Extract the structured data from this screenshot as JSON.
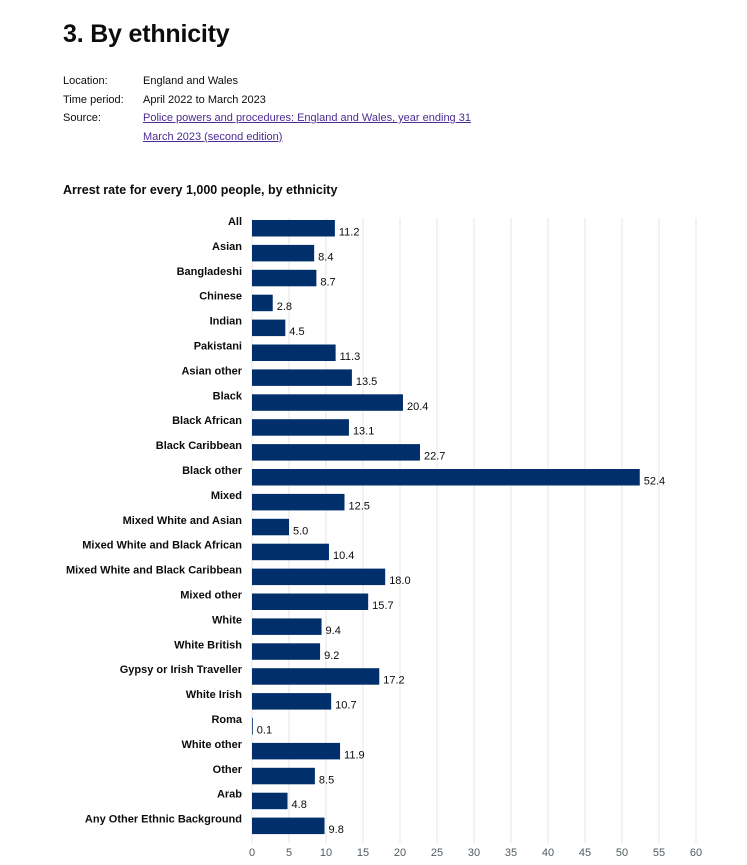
{
  "page": {
    "title": "3. By ethnicity"
  },
  "meta": {
    "location_label": "Location:",
    "location_value": "England and Wales",
    "period_label": "Time period:",
    "period_value": "April 2022 to March 2023",
    "source_label": "Source:",
    "source_link_text": "Police powers and procedures: England and Wales, year ending 31 March 2023 (second edition)"
  },
  "colors": {
    "bar": "#002f6c",
    "grid": "#e6e6e6",
    "link": "#4c2c92"
  },
  "chart_data": {
    "type": "bar",
    "orientation": "horizontal",
    "title": "Arrest rate for every 1,000 people, by ethnicity",
    "xlabel": "",
    "ylabel": "",
    "xlim": [
      0,
      60
    ],
    "xticks": [
      0,
      5,
      10,
      15,
      20,
      25,
      30,
      35,
      40,
      45,
      50,
      55,
      60
    ],
    "grid": true,
    "categories": [
      "All",
      "Asian",
      "Bangladeshi",
      "Chinese",
      "Indian",
      "Pakistani",
      "Asian other",
      "Black",
      "Black African",
      "Black Caribbean",
      "Black other",
      "Mixed",
      "Mixed White and Asian",
      "Mixed White and Black African",
      "Mixed White and Black Caribbean",
      "Mixed other",
      "White",
      "White British",
      "Gypsy or Irish Traveller",
      "White Irish",
      "Roma",
      "White other",
      "Other",
      "Arab",
      "Any Other Ethnic Background"
    ],
    "values": [
      11.2,
      8.4,
      8.7,
      2.8,
      4.5,
      11.3,
      13.5,
      20.4,
      13.1,
      22.7,
      52.4,
      12.5,
      5.0,
      10.4,
      18.0,
      15.7,
      9.4,
      9.2,
      17.2,
      10.7,
      0.1,
      11.9,
      8.5,
      4.8,
      9.8
    ],
    "value_labels": [
      "11.2",
      "8.4",
      "8.7",
      "2.8",
      "4.5",
      "11.3",
      "13.5",
      "20.4",
      "13.1",
      "22.7",
      "52.4",
      "12.5",
      "5.0",
      "10.4",
      "18.0",
      "15.7",
      "9.4",
      "9.2",
      "17.2",
      "10.7",
      "0.1",
      "11.9",
      "8.5",
      "4.8",
      "9.8"
    ]
  }
}
